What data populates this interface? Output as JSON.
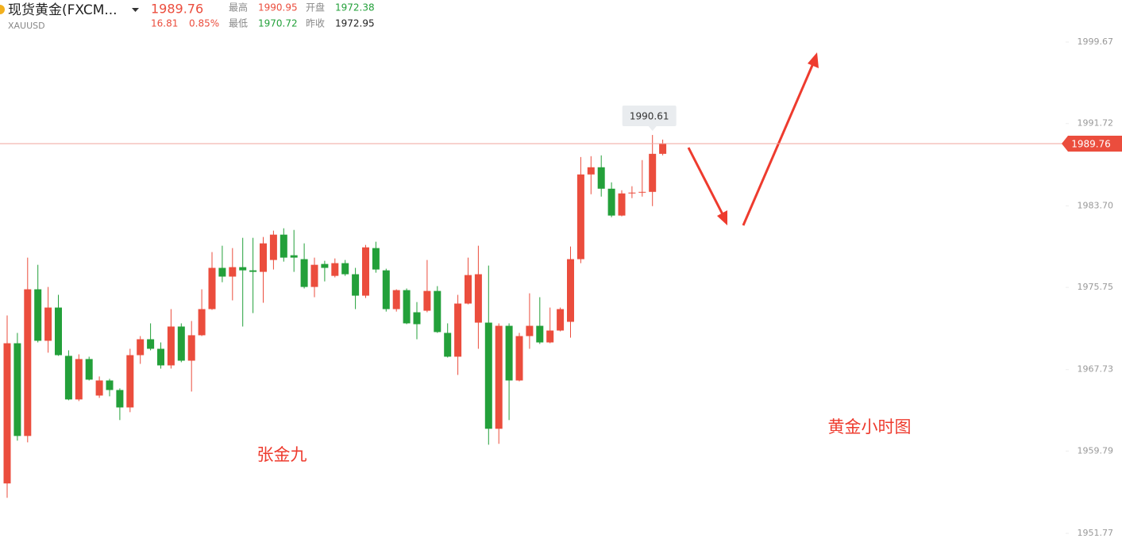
{
  "header": {
    "name": "现货黄金(FXCM...",
    "symbol": "XAUUSD",
    "change": "16.81",
    "change_pct": "0.85%",
    "high_label": "最高",
    "high": "1990.95",
    "open_label": "开盘",
    "open": "1972.38",
    "low_label": "最低",
    "low": "1970.72",
    "prev_label": "昨收",
    "prev": "1972.95"
  },
  "chart_data": {
    "type": "candlestick",
    "up_color": "#eb4d3d",
    "down_color": "#23a03a",
    "ylim": [
      1950.53,
      2003.77
    ],
    "yticks": [
      1951.77,
      1959.79,
      1967.73,
      1975.75,
      {
        "value": 1983.7,
        "label": "1983.70"
      },
      1991.72,
      1999.67
    ],
    "annotations": [
      "张金九",
      "黄金小时图"
    ],
    "open": [
      1956.63,
      1970.3,
      1961.26,
      1975.56,
      1970.54,
      1973.78,
      1969.07,
      1964.82,
      1968.76,
      1965.2,
      1966.67,
      1965.74,
      1964.04,
      1969.14,
      1970.69,
      1969.76,
      1968.14,
      1971.93,
      1968.6,
      1971.08,
      1973.63,
      1977.65,
      1976.8,
      1977.72,
      1977.41,
      1977.26,
      1978.42,
      1980.89,
      1978.88,
      1978.5,
      1975.79,
      1978.03,
      1976.87,
      1978.11,
      1977.03,
      1974.94,
      1979.58,
      1977.41,
      1973.63,
      1975.48,
      1973.32,
      1973.47,
      1975.4,
      1971.31,
      1968.99,
      1974.17,
      1972.31,
      1972.31,
      1961.96,
      1972.0,
      1966.67,
      1971.0,
      1972.0,
      1970.38,
      1971.54,
      1972.39,
      1978.5,
      1986.76,
      1987.46,
      1985.37,
      1982.75,
      1984.91,
      1984.99,
      1985.06,
      1988.77
    ],
    "high": [
      1973.01,
      1971.31,
      1978.65,
      1977.95,
      1975.79,
      1975.02,
      1969.61,
      1969.22,
      1968.99,
      1967.06,
      1966.83,
      1965.9,
      1969.76,
      1971.0,
      1972.24,
      1970.38,
      1973.63,
      1972.24,
      1972.47,
      1975.56,
      1979.19,
      1979.81,
      1979.58,
      1980.58,
      1980.58,
      1980.66,
      1981.28,
      1981.51,
      1981.35,
      1980.04,
      1978.65,
      1978.34,
      1978.57,
      1978.42,
      1977.65,
      1979.89,
      1980.2,
      1977.57,
      1975.56,
      1975.64,
      1974.32,
      1978.42,
      1975.87,
      1972.24,
      1975.02,
      1978.65,
      1979.81,
      1977.88,
      1972.24,
      1972.24,
      1971.31,
      1975.17,
      1974.79,
      1973.78,
      1973.78,
      1979.73,
      1988.46,
      1988.54,
      1988.62,
      1985.99,
      1985.22,
      1985.61,
      1988.16,
      1990.61,
      1990.16
    ],
    "low": [
      1955.23,
      1960.8,
      1960.64,
      1970.38,
      1969.38,
      1969.07,
      1964.74,
      1964.66,
      1966.67,
      1964.97,
      1965.13,
      1962.81,
      1963.58,
      1968.29,
      1969.61,
      1967.83,
      1967.83,
      1968.45,
      1965.59,
      1971.0,
      1973.55,
      1976.25,
      1974.48,
      1971.93,
      1973.24,
      1974.25,
      1977.49,
      1978.26,
      1977.26,
      1975.64,
      1974.79,
      1976.33,
      1976.72,
      1976.87,
      1973.63,
      1974.71,
      1977.18,
      1973.39,
      1973.39,
      1972.16,
      1970.69,
      1973.32,
      1971.31,
      1968.91,
      1967.21,
      1974.09,
      1969.76,
      1960.41,
      1960.49,
      1962.81,
      1966.59,
      1969.76,
      1970.23,
      1970.3,
      1971.46,
      1970.84,
      1978.11,
      1984.83,
      1984.6,
      1982.59,
      1982.67,
      1984.45,
      1984.6,
      1983.67,
      1988.62
    ],
    "close": [
      1970.3,
      1961.26,
      1975.56,
      1970.54,
      1973.78,
      1969.14,
      1964.82,
      1968.76,
      1966.75,
      1966.67,
      1965.74,
      1964.04,
      1969.14,
      1970.69,
      1969.76,
      1968.14,
      1971.93,
      1968.6,
      1971.08,
      1973.63,
      1977.65,
      1976.8,
      1977.72,
      1977.41,
      1977.26,
      1980.04,
      1980.89,
      1978.65,
      1978.65,
      1975.79,
      1977.95,
      1977.65,
      1978.11,
      1977.03,
      1974.94,
      1979.65,
      1977.49,
      1973.63,
      1975.48,
      1972.24,
      1972.16,
      1975.4,
      1971.39,
      1968.99,
      1974.17,
      1976.95,
      1977.03,
      1961.96,
      1972.0,
      1966.67,
      1971.0,
      1972.0,
      1970.38,
      1971.54,
      1973.63,
      1978.5,
      1986.76,
      1987.46,
      1985.37,
      1982.75,
      1984.91,
      1984.99,
      1985.06,
      1988.77,
      1989.76
    ]
  }
}
